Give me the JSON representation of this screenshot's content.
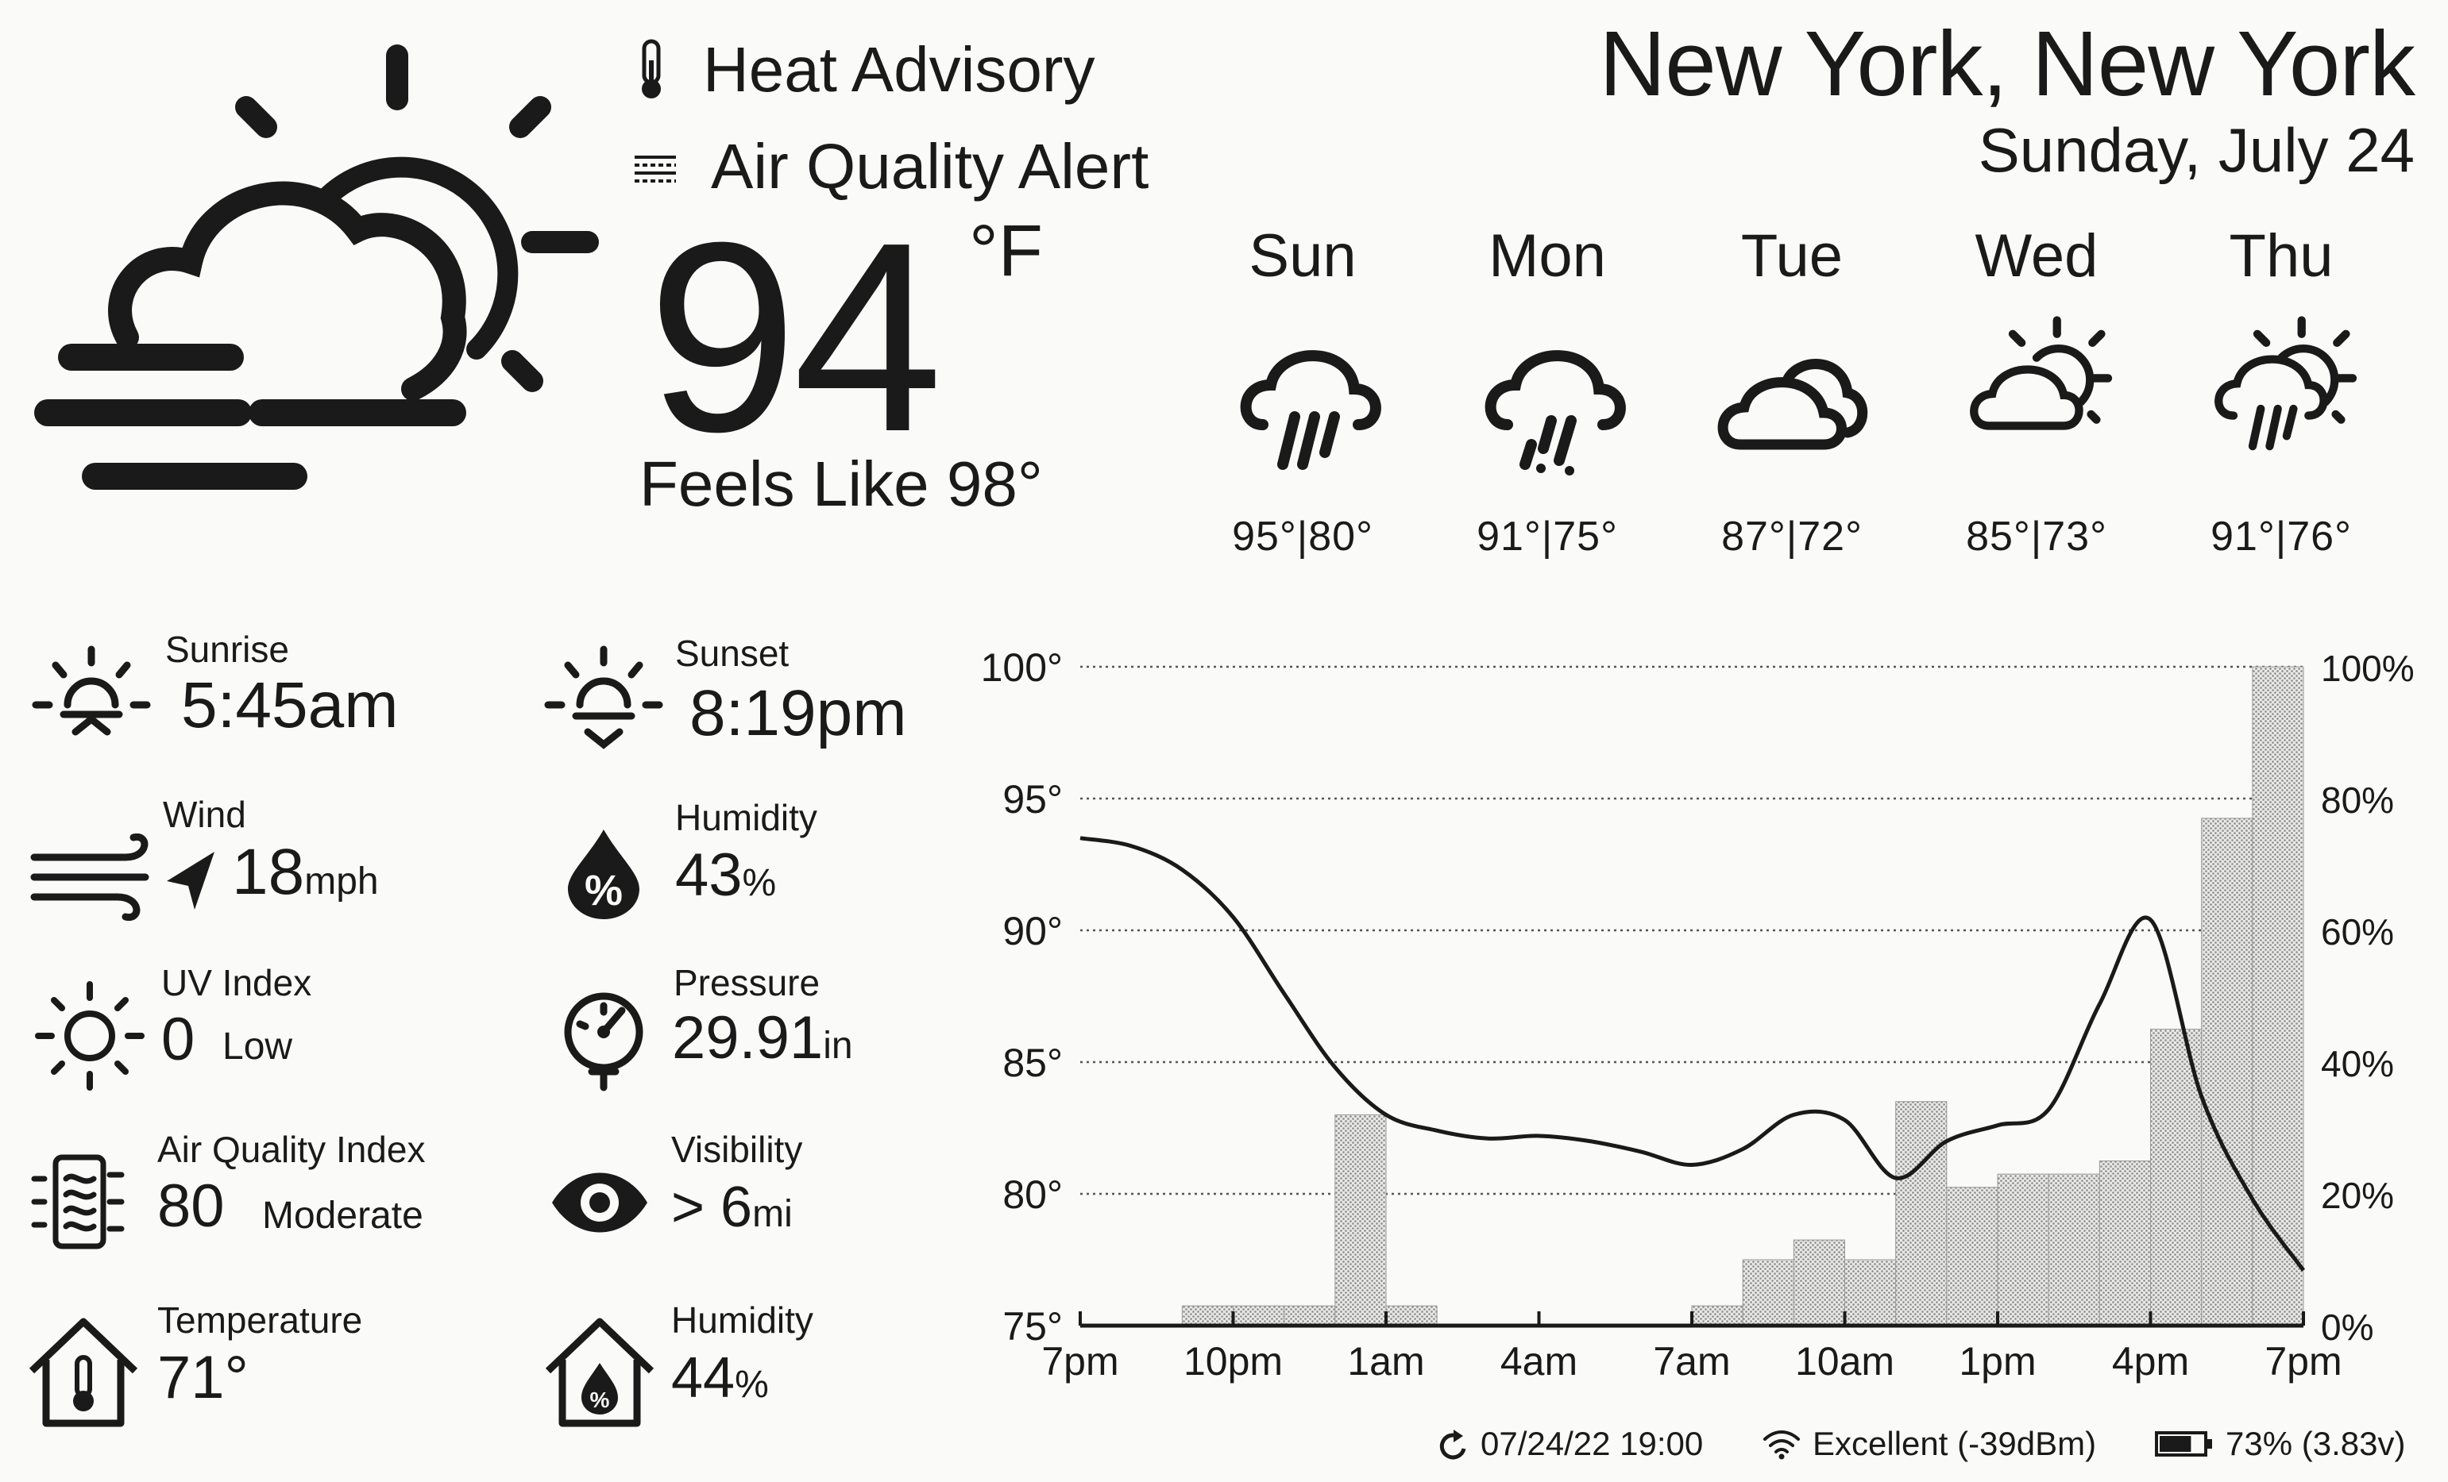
{
  "alerts": [
    {
      "label": "Heat Advisory",
      "icon": "thermometer-icon"
    },
    {
      "label": "Air Quality Alert",
      "icon": "haze-icon"
    }
  ],
  "current": {
    "temp": "94",
    "unit": "°F",
    "feels_like": "Feels Like 98°",
    "icon": "partly-cloudy-fog-icon"
  },
  "location": {
    "city": "New York, New York",
    "date": "Sunday, July 24"
  },
  "forecast": [
    {
      "day": "Sun",
      "temps": "95°|80°",
      "icon": "rain-icon"
    },
    {
      "day": "Mon",
      "temps": "91°|75°",
      "icon": "storm-rain-icon"
    },
    {
      "day": "Tue",
      "temps": "87°|72°",
      "icon": "cloudy-icon"
    },
    {
      "day": "Wed",
      "temps": "85°|73°",
      "icon": "partly-cloudy-icon"
    },
    {
      "day": "Thu",
      "temps": "91°|76°",
      "icon": "partly-cloudy-rain-icon"
    }
  ],
  "details": {
    "sunrise": {
      "label": "Sunrise",
      "value": "5:45am"
    },
    "sunset": {
      "label": "Sunset",
      "value": "8:19pm"
    },
    "wind": {
      "label": "Wind",
      "value": "18",
      "unit": "mph"
    },
    "humidity": {
      "label": "Humidity",
      "value": "43",
      "unit": "%"
    },
    "uv": {
      "label": "UV Index",
      "value": "0",
      "desc": "Low"
    },
    "pressure": {
      "label": "Pressure",
      "value": "29.91",
      "unit": "in"
    },
    "aqi": {
      "label": "Air Quality Index",
      "value": "80",
      "desc": "Moderate"
    },
    "visibility": {
      "label": "Visibility",
      "value": "> 6",
      "unit": "mi"
    },
    "indoor_temp": {
      "label": "Temperature",
      "value": "71°"
    },
    "indoor_humidity": {
      "label": "Humidity",
      "value": "44",
      "unit": "%"
    }
  },
  "chart_data": {
    "type": "line",
    "x_ticks": [
      "7pm",
      "10pm",
      "1am",
      "4am",
      "7am",
      "10am",
      "1pm",
      "4pm",
      "7pm"
    ],
    "y_left_ticks": [
      "100°",
      "95°",
      "90°",
      "85°",
      "80°",
      "75°"
    ],
    "y_right_ticks": [
      "100%",
      "80%",
      "60%",
      "40%",
      "20%",
      "0%"
    ],
    "ylim_left": [
      75,
      100
    ],
    "ylim_right": [
      0,
      100
    ],
    "grid": true,
    "temperature": {
      "hours": [
        0,
        1,
        2,
        3,
        4,
        5,
        6,
        7,
        8,
        9,
        10,
        11,
        12,
        13,
        14,
        15,
        16,
        17,
        18,
        19,
        20,
        21,
        22,
        23,
        24
      ],
      "values": [
        93.5,
        93.2,
        92.3,
        90.5,
        87.6,
        84.8,
        83.0,
        82.4,
        82.1,
        82.2,
        82.0,
        81.6,
        81.1,
        81.7,
        83.0,
        82.8,
        80.6,
        82.0,
        82.6,
        83.2,
        87.2,
        90.4,
        83.7,
        79.8,
        77.1
      ]
    },
    "precip_probability": {
      "hours": [
        2,
        3,
        4,
        5,
        6,
        12,
        13,
        14,
        15,
        16,
        17,
        18,
        19,
        20,
        21,
        22,
        23
      ],
      "values": [
        3,
        3,
        3,
        32,
        3,
        3,
        10,
        13,
        10,
        34,
        21,
        23,
        23,
        25,
        45,
        77,
        100
      ]
    }
  },
  "status": {
    "updated": "07/24/22 19:00",
    "wifi": "Excellent (-39dBm)",
    "battery": "73% (3.83v)"
  }
}
